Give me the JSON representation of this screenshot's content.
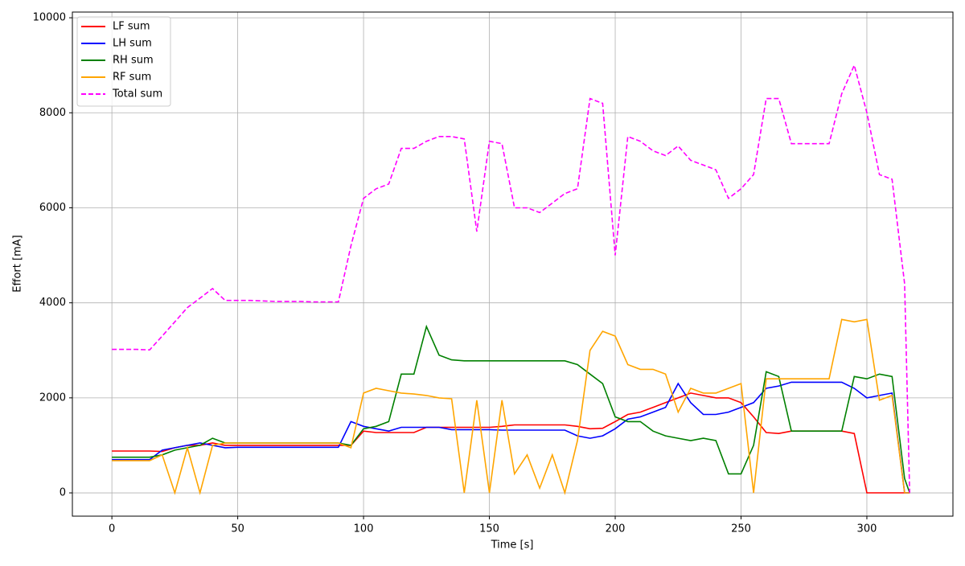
{
  "chart_data": {
    "type": "line",
    "x_label": "Time [s]",
    "y_label": "Effort [mA]",
    "x": [
      0,
      5,
      10,
      15,
      20,
      25,
      30,
      35,
      40,
      45,
      50,
      55,
      60,
      65,
      70,
      75,
      80,
      85,
      90,
      95,
      100,
      105,
      110,
      115,
      120,
      125,
      130,
      135,
      140,
      145,
      150,
      155,
      160,
      165,
      170,
      175,
      180,
      185,
      190,
      195,
      200,
      205,
      210,
      215,
      220,
      225,
      230,
      235,
      240,
      245,
      250,
      255,
      260,
      265,
      270,
      275,
      280,
      285,
      290,
      295,
      300,
      305,
      310,
      315,
      317
    ],
    "series": [
      {
        "name": "LF sum",
        "color": "#ff0000",
        "style": "solid",
        "values": [
          880,
          880,
          880,
          880,
          870,
          950,
          1000,
          1000,
          1050,
          1000,
          1000,
          1000,
          1000,
          1000,
          1000,
          1000,
          1000,
          1000,
          1000,
          1000,
          1300,
          1270,
          1270,
          1270,
          1270,
          1380,
          1380,
          1380,
          1380,
          1380,
          1380,
          1400,
          1430,
          1430,
          1430,
          1430,
          1430,
          1400,
          1350,
          1360,
          1500,
          1650,
          1700,
          1800,
          1900,
          2000,
          2100,
          2050,
          2000,
          2000,
          1900,
          1600,
          1270,
          1250,
          1300,
          1300,
          1300,
          1300,
          1300,
          1250,
          0,
          0,
          0,
          0,
          0
        ]
      },
      {
        "name": "LH sum",
        "color": "#0000ff",
        "style": "solid",
        "values": [
          700,
          700,
          700,
          700,
          900,
          950,
          1000,
          1050,
          1000,
          950,
          960,
          960,
          960,
          960,
          960,
          960,
          960,
          960,
          960,
          1500,
          1400,
          1350,
          1300,
          1380,
          1380,
          1380,
          1380,
          1330,
          1330,
          1330,
          1330,
          1320,
          1320,
          1320,
          1320,
          1320,
          1320,
          1200,
          1150,
          1200,
          1350,
          1550,
          1600,
          1700,
          1800,
          2300,
          1900,
          1650,
          1650,
          1700,
          1800,
          1900,
          2200,
          2250,
          2330,
          2330,
          2330,
          2330,
          2330,
          2200,
          2000,
          2050,
          2100,
          0,
          0
        ]
      },
      {
        "name": "RH sum",
        "color": "#008000",
        "style": "solid",
        "values": [
          750,
          750,
          750,
          750,
          800,
          900,
          950,
          1000,
          1150,
          1050,
          1050,
          1050,
          1050,
          1050,
          1050,
          1050,
          1050,
          1050,
          1050,
          1000,
          1350,
          1400,
          1500,
          2500,
          2500,
          3500,
          2900,
          2800,
          2780,
          2780,
          2780,
          2780,
          2780,
          2780,
          2780,
          2780,
          2780,
          2700,
          2500,
          2300,
          1600,
          1500,
          1500,
          1300,
          1200,
          1150,
          1100,
          1150,
          1100,
          400,
          400,
          1000,
          2550,
          2450,
          1300,
          1300,
          1300,
          1300,
          1300,
          2450,
          2400,
          2500,
          2450,
          300,
          0
        ]
      },
      {
        "name": "RF sum",
        "color": "#ffa500",
        "style": "solid",
        "values": [
          680,
          680,
          680,
          680,
          800,
          0,
          950,
          0,
          1000,
          1050,
          1050,
          1050,
          1050,
          1050,
          1050,
          1050,
          1050,
          1050,
          1050,
          950,
          2100,
          2200,
          2150,
          2100,
          2080,
          2050,
          2000,
          1980,
          0,
          1950,
          0,
          1950,
          400,
          800,
          100,
          800,
          0,
          1100,
          3000,
          3400,
          3300,
          2700,
          2600,
          2600,
          2500,
          1700,
          2200,
          2100,
          2100,
          2200,
          2300,
          0,
          2400,
          2400,
          2400,
          2400,
          2400,
          2400,
          3650,
          3600,
          3650,
          1950,
          2050,
          0,
          0
        ]
      },
      {
        "name": "Total sum",
        "color": "#ff00ff",
        "style": "dashed",
        "values": [
          3020,
          3020,
          3020,
          3010,
          3300,
          3600,
          3900,
          4100,
          4300,
          4050,
          4050,
          4050,
          4040,
          4030,
          4030,
          4030,
          4020,
          4020,
          4020,
          5200,
          6200,
          6400,
          6500,
          7250,
          7250,
          7400,
          7500,
          7500,
          7450,
          5500,
          7400,
          7350,
          6000,
          6000,
          5900,
          6100,
          6300,
          6400,
          8300,
          8200,
          5000,
          7500,
          7400,
          7200,
          7100,
          7300,
          7000,
          6900,
          6800,
          6200,
          6400,
          6700,
          8300,
          8300,
          7350,
          7350,
          7350,
          7350,
          8400,
          9000,
          8000,
          6700,
          6600,
          4400,
          0
        ]
      }
    ],
    "xlim": [
      -15.7,
      334.2
    ],
    "xticks": [
      0,
      50,
      100,
      150,
      200,
      250,
      300
    ],
    "ylim": [
      -490,
      10120
    ],
    "yticks": [
      0,
      2000,
      4000,
      6000,
      8000,
      10000
    ],
    "grid": true,
    "legend": "upper-left"
  }
}
